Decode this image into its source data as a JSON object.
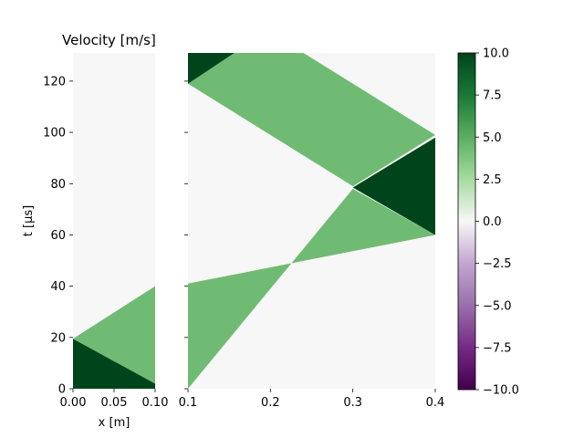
{
  "chart_data": {
    "type": "heatmap",
    "title": "Velocity [m/s]",
    "xlabel": "x [m]",
    "ylabel": "t [µs]",
    "ylim": [
      0,
      131
    ],
    "colormap": "PRGn",
    "clim": [
      -10,
      10
    ],
    "background_value": 0,
    "panels": [
      {
        "name": "left",
        "xlim": [
          0.0,
          0.1
        ],
        "xticks": [
          "0.00",
          "0.05",
          "0.10"
        ],
        "xtick_values": [
          0.0,
          0.05,
          0.1
        ],
        "regions": [
          {
            "value": 10.0,
            "points": [
              [
                0.0,
                19.5
              ],
              [
                0.0,
                0.0
              ],
              [
                0.1,
                0.0
              ],
              [
                0.1,
                2.0
              ]
            ]
          },
          {
            "value": 4.3,
            "points": [
              [
                0.0,
                19.5
              ],
              [
                0.1,
                2.0
              ],
              [
                0.1,
                40.0
              ]
            ]
          }
        ]
      },
      {
        "name": "right",
        "xlim": [
          0.1,
          0.4
        ],
        "xticks": [
          "0.1",
          "0.2",
          "0.3",
          "0.4"
        ],
        "xtick_values": [
          0.1,
          0.2,
          0.3,
          0.4
        ],
        "regions": [
          {
            "value": 4.3,
            "points": [
              [
                0.1,
                0.0
              ],
              [
                0.1,
                41.0
              ],
              [
                0.4,
                60.0
              ],
              [
                0.3,
                78.0
              ]
            ]
          },
          {
            "value": 10.0,
            "points": [
              [
                0.3,
                78.5
              ],
              [
                0.4,
                60.0
              ],
              [
                0.4,
                98.0
              ]
            ]
          },
          {
            "value": 4.3,
            "points": [
              [
                0.1,
                119.0
              ],
              [
                0.1,
                131.0
              ],
              [
                0.24,
                131.0
              ],
              [
                0.4,
                99.0
              ],
              [
                0.3,
                79.0
              ]
            ]
          },
          {
            "value": 10.0,
            "points": [
              [
                0.1,
                119.0
              ],
              [
                0.1,
                131.0
              ],
              [
                0.156,
                131.0
              ]
            ]
          }
        ]
      }
    ],
    "yticks": [
      0,
      20,
      40,
      60,
      80,
      100,
      120
    ],
    "colorbar": {
      "ticks": [
        10.0,
        7.5,
        5.0,
        2.5,
        0.0,
        -2.5,
        -5.0,
        -7.5,
        -10.0
      ],
      "tick_labels": [
        "10.0",
        "7.5",
        "5.0",
        "2.5",
        "0.0",
        "−2.5",
        "−5.0",
        "−7.5",
        "−10.0"
      ]
    }
  }
}
